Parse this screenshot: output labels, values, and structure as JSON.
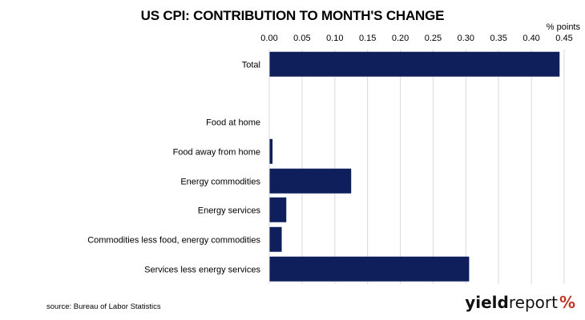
{
  "title": "US CPI: CONTRIBUTION TO MONTH'S CHANGE",
  "unit_label": "% points",
  "source": "source: Bureau of Labor Statistics",
  "brand": {
    "yield": "yield",
    "report": "report",
    "symbol": "%"
  },
  "colors": {
    "bar": "#0e1f5b",
    "grid": "#d9d9d9",
    "brand_green": "#2e8b3a",
    "brand_red": "#c0392b"
  },
  "chart_data": {
    "type": "bar",
    "orientation": "horizontal",
    "title": "US CPI: CONTRIBUTION TO MONTH'S CHANGE",
    "xlabel": "% points",
    "xlim": [
      0,
      0.45
    ],
    "ticks": [
      "0.00",
      "0.05",
      "0.10",
      "0.15",
      "0.20",
      "0.25",
      "0.30",
      "0.35",
      "0.40",
      "0.45"
    ],
    "tick_values": [
      0,
      0.05,
      0.1,
      0.15,
      0.2,
      0.25,
      0.3,
      0.35,
      0.4,
      0.45
    ],
    "axis_position": "top",
    "grid": true,
    "categories": [
      "Total",
      "",
      "Food at home",
      "Food away from home",
      "Energy commodities",
      "Energy services",
      "Commodities less food, energy commodities",
      "Services less energy services"
    ],
    "values": [
      0.443,
      null,
      0.0,
      0.005,
      0.125,
      0.026,
      0.019,
      0.305
    ]
  }
}
